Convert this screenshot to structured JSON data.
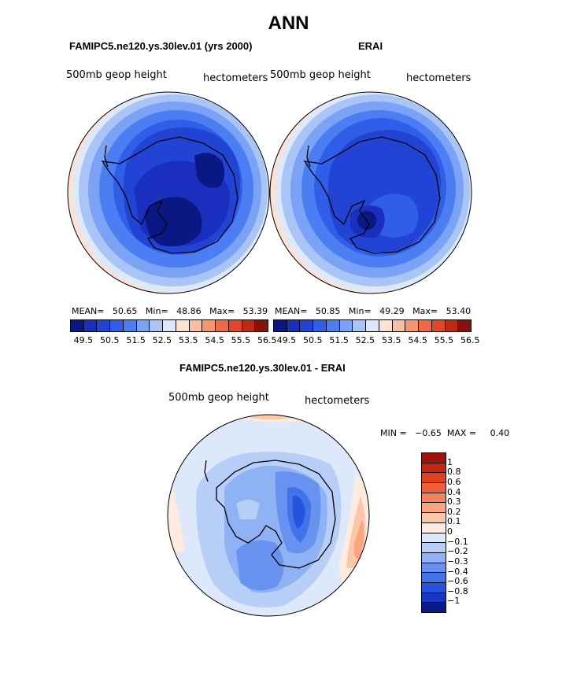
{
  "main_title": "ANN",
  "panels": [
    {
      "title": "FAMIPC5.ne120.ys.30lev.01 (yrs 2000)",
      "field_label": "500mb  geop  height",
      "units": "hectometers",
      "stats": {
        "mean_label": "MEAN=",
        "mean": "50.65",
        "min_label": "Min=",
        "min": "48.86",
        "max_label": "Max=",
        "max": "53.39"
      }
    },
    {
      "title": "ERAI",
      "field_label": "500mb  geop  height",
      "units": "hectometers",
      "stats": {
        "mean_label": "MEAN=",
        "mean": "50.85",
        "min_label": "Min=",
        "min": "49.29",
        "max_label": "Max=",
        "max": "53.40"
      }
    }
  ],
  "abs_colorbar": {
    "colors": [
      "#0a1883",
      "#1a2fbd",
      "#2244d4",
      "#2f5ee8",
      "#4a7ef2",
      "#7aa3f5",
      "#a9c4f6",
      "#dce9fa",
      "#fde2d2",
      "#f9bfa2",
      "#f6966d",
      "#ef6a42",
      "#e24628",
      "#bd2a14",
      "#8b1108"
    ],
    "tick_labels": [
      "49.5",
      "50.5",
      "51.5",
      "52.5",
      "53.5",
      "54.5",
      "55.5",
      "56.5"
    ]
  },
  "diff_panel": {
    "title": "FAMIPC5.ne120.ys.30lev.01 - ERAI",
    "field_label": "500mb  geop  height",
    "units": "hectometers",
    "range_text": "MIN =   −0.65  MAX =     0.40"
  },
  "diff_colorbar": {
    "colors": [
      "#9e1408",
      "#c7250e",
      "#e0401d",
      "#ef5f35",
      "#f58258",
      "#f9a57f",
      "#fcc7a8",
      "#feebdd",
      "#dde9fb",
      "#b7cff7",
      "#8fb2f4",
      "#6792ef",
      "#4173ea",
      "#2654df",
      "#1837c4",
      "#0b1a8a"
    ],
    "tick_labels": [
      "1",
      "0.8",
      "0.6",
      "0.4",
      "0.3",
      "0.2",
      "0.1",
      "0",
      "−0.1",
      "−0.2",
      "−0.3",
      "−0.4",
      "−0.6",
      "−0.8",
      "−1"
    ]
  }
}
